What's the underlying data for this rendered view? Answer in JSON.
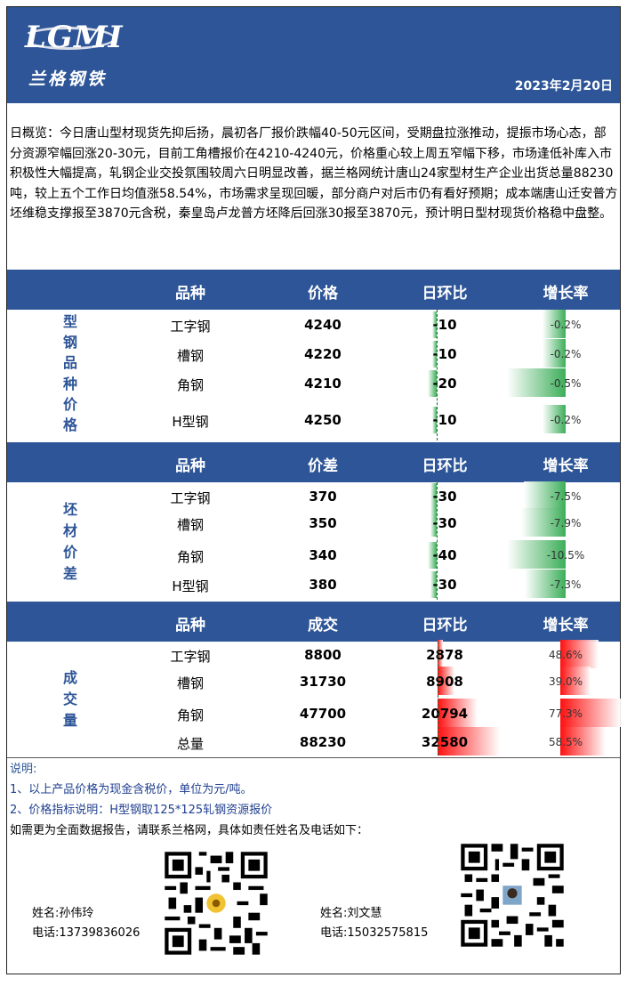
{
  "header": {
    "logo": "LGMI",
    "logo_sub": "兰格钢铁",
    "date": "2023年2月20日"
  },
  "overview": "日概览：今日唐山型材现货先抑后扬，晨初各厂报价跌幅40-50元区间，受期盘拉涨推动，提振市场心态，部分资源窄幅回涨20-30元，目前工角槽报价在4210-4240元，价格重心较上周五窄幅下移，市场逢低补库入市积极性大幅提高，轧钢企业交投氛围较周六日明显改善，据兰格网统计唐山24家型材生产企业出货总量88230吨，较上五个工作日均值涨58.54%，市场需求呈现回暖，部分商户对后市仍有看好预期；成本端唐山迁安普方坯维稳支撑报至3870元含税，秦皇岛卢龙普方坯降后回涨30报至3870元，预计明日型材现货价格稳中盘整。",
  "sections": [
    {
      "label": "型钢品种价格",
      "headers": [
        "品种",
        "价格",
        "日环比",
        "增长率"
      ],
      "rows": [
        {
          "name": "工字钢",
          "value": "4240",
          "change": "-10",
          "rate": "-0.2%",
          "rate_num": -0.2
        },
        {
          "name": "槽钢",
          "value": "4220",
          "change": "-10",
          "rate": "-0.2%",
          "rate_num": -0.2
        },
        {
          "name": "角钢",
          "value": "4210",
          "change": "-20",
          "rate": "-0.5%",
          "rate_num": -0.5
        },
        {
          "name": "H型钢",
          "value": "4250",
          "change": "-10",
          "rate": "-0.2%",
          "rate_num": -0.2
        }
      ]
    },
    {
      "label": "坯材价差",
      "headers": [
        "品种",
        "价差",
        "日环比",
        "增长率"
      ],
      "rows": [
        {
          "name": "工字钢",
          "value": "370",
          "change": "-30",
          "rate": "-7.5%",
          "rate_num": -7.5
        },
        {
          "name": "槽钢",
          "value": "350",
          "change": "-30",
          "rate": "-7.9%",
          "rate_num": -7.9
        },
        {
          "name": "角钢",
          "value": "340",
          "change": "-40",
          "rate": "-10.5%",
          "rate_num": -10.5
        },
        {
          "name": "H型钢",
          "value": "380",
          "change": "-30",
          "rate": "-7.3%",
          "rate_num": -7.3
        }
      ]
    },
    {
      "label": "成交量",
      "headers": [
        "品种",
        "成交",
        "日环比",
        "增长率"
      ],
      "rows": [
        {
          "name": "工字钢",
          "value": "8800",
          "change": "2878",
          "rate": "48.6%",
          "rate_num": 48.6
        },
        {
          "name": "槽钢",
          "value": "31730",
          "change": "8908",
          "rate": "39.0%",
          "rate_num": 39.0
        },
        {
          "name": "角钢",
          "value": "47700",
          "change": "20794",
          "rate": "77.3%",
          "rate_num": 77.3
        },
        {
          "name": "总量",
          "value": "88230",
          "change": "32580",
          "rate": "58.5%",
          "rate_num": 58.5
        }
      ]
    }
  ],
  "notes": {
    "title": "说明:",
    "line1": "1、以上产品价格为现金含税价，单位为元/吨。",
    "line2": "2、价格指标说明：H型钢取125*125轧钢资源报价",
    "line3": "如需更为全面数据报告，请联系兰格网，具体如责任姓名及电话如下："
  },
  "contacts": [
    {
      "name": "姓名:孙伟玲",
      "phone": "电话:13739836026"
    },
    {
      "name": "姓名:刘文慧",
      "phone": "电话:15032575815"
    }
  ]
}
